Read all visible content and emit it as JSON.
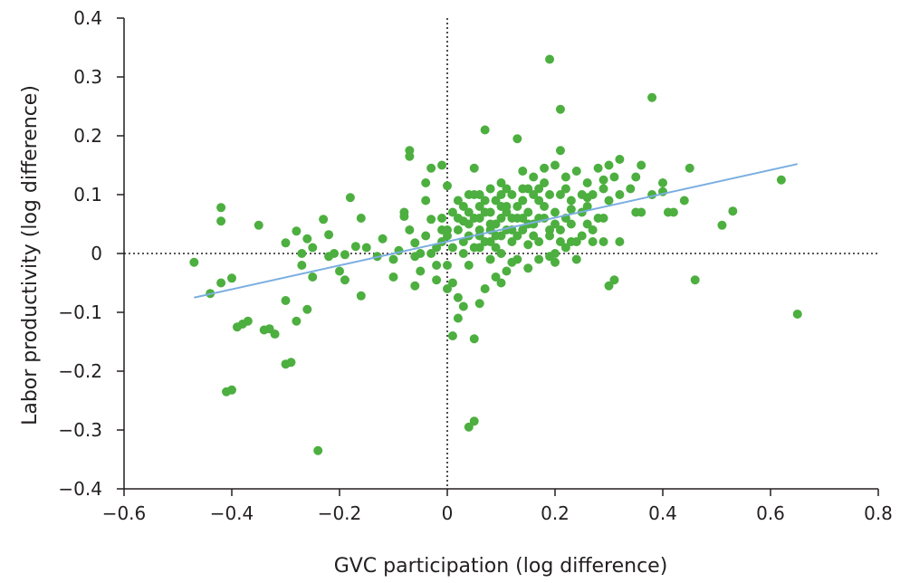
{
  "chart_data": {
    "type": "scatter",
    "title": "",
    "xlabel": "GVC participation (log difference)",
    "ylabel": "Labor productivity (log difference)",
    "xlim": [
      -0.6,
      0.8
    ],
    "ylim": [
      -0.4,
      0.4
    ],
    "x_ticks": [
      -0.6,
      -0.4,
      -0.2,
      0,
      0.2,
      0.4,
      0.6,
      0.8
    ],
    "x_tick_labels": [
      "−0.6",
      "−0.4",
      "−0.2",
      "0",
      "0.2",
      "0.4",
      "0.6",
      "0.8"
    ],
    "y_ticks": [
      -0.4,
      -0.3,
      -0.2,
      -0.1,
      0,
      0.1,
      0.2,
      0.3,
      0.4
    ],
    "y_tick_labels": [
      "−0.4",
      "−0.3",
      "−0.2",
      "−0.1",
      "0",
      "0.1",
      "0.2",
      "0.3",
      "0.4"
    ],
    "grid": false,
    "reference_lines": [
      "x = 0 (dotted)",
      "y = 0 (dotted)"
    ],
    "colors": {
      "points": "#4caf3f",
      "fit_line": "#7aaee0",
      "axis": "#231f20",
      "reference": "#231f20"
    },
    "fit_line": {
      "x": [
        -0.47,
        0.65
      ],
      "y": [
        -0.075,
        0.152
      ]
    },
    "points": [
      [
        -0.47,
        -0.015
      ],
      [
        -0.44,
        -0.068
      ],
      [
        -0.42,
        0.078
      ],
      [
        -0.42,
        0.055
      ],
      [
        -0.42,
        -0.05
      ],
      [
        -0.4,
        -0.042
      ],
      [
        -0.41,
        -0.235
      ],
      [
        -0.4,
        -0.232
      ],
      [
        -0.39,
        -0.125
      ],
      [
        -0.38,
        -0.12
      ],
      [
        -0.37,
        -0.115
      ],
      [
        -0.35,
        0.048
      ],
      [
        -0.34,
        -0.13
      ],
      [
        -0.33,
        -0.128
      ],
      [
        -0.32,
        -0.137
      ],
      [
        -0.3,
        0.018
      ],
      [
        -0.3,
        -0.08
      ],
      [
        -0.3,
        -0.188
      ],
      [
        -0.29,
        -0.185
      ],
      [
        -0.28,
        0.038
      ],
      [
        -0.28,
        -0.115
      ],
      [
        -0.27,
        0.0
      ],
      [
        -0.27,
        -0.02
      ],
      [
        -0.26,
        0.025
      ],
      [
        -0.26,
        -0.095
      ],
      [
        -0.25,
        0.01
      ],
      [
        -0.25,
        -0.04
      ],
      [
        -0.24,
        -0.335
      ],
      [
        -0.23,
        0.058
      ],
      [
        -0.22,
        0.032
      ],
      [
        -0.22,
        -0.005
      ],
      [
        -0.21,
        0.0
      ],
      [
        -0.2,
        -0.03
      ],
      [
        -0.19,
        -0.045
      ],
      [
        -0.19,
        -0.002
      ],
      [
        -0.18,
        0.095
      ],
      [
        -0.17,
        0.012
      ],
      [
        -0.16,
        0.06
      ],
      [
        -0.16,
        -0.072
      ],
      [
        -0.15,
        0.01
      ],
      [
        -0.13,
        -0.005
      ],
      [
        -0.12,
        0.025
      ],
      [
        -0.1,
        -0.01
      ],
      [
        -0.1,
        -0.04
      ],
      [
        -0.09,
        0.005
      ],
      [
        -0.08,
        0.063
      ],
      [
        -0.08,
        0.07
      ],
      [
        -0.07,
        0.175
      ],
      [
        -0.07,
        0.165
      ],
      [
        -0.07,
        0.04
      ],
      [
        -0.06,
        0.018
      ],
      [
        -0.06,
        -0.055
      ],
      [
        -0.05,
        0.0
      ],
      [
        -0.05,
        -0.03
      ],
      [
        -0.04,
        0.12
      ],
      [
        -0.04,
        0.09
      ],
      [
        -0.03,
        0.145
      ],
      [
        -0.03,
        0.058
      ],
      [
        -0.02,
        0.01
      ],
      [
        -0.02,
        -0.045
      ],
      [
        -0.01,
        0.15
      ],
      [
        -0.01,
        0.04
      ],
      [
        0.0,
        0.115
      ],
      [
        0.0,
        0.03
      ],
      [
        0.0,
        -0.02
      ],
      [
        0.01,
        0.07
      ],
      [
        0.01,
        -0.05
      ],
      [
        0.02,
        0.09
      ],
      [
        0.02,
        -0.11
      ],
      [
        0.03,
        0.055
      ],
      [
        0.03,
        0.0
      ],
      [
        0.03,
        -0.09
      ],
      [
        0.04,
        0.1
      ],
      [
        0.04,
        0.03
      ],
      [
        0.04,
        -0.02
      ],
      [
        0.05,
        0.06
      ],
      [
        0.05,
        0.145
      ],
      [
        0.05,
        -0.145
      ],
      [
        0.05,
        -0.285
      ],
      [
        0.06,
        0.04
      ],
      [
        0.06,
        0.08
      ],
      [
        0.06,
        0.01
      ],
      [
        0.07,
        0.21
      ],
      [
        0.07,
        0.07
      ],
      [
        0.07,
        -0.06
      ],
      [
        0.08,
        0.05
      ],
      [
        0.08,
        0.11
      ],
      [
        0.08,
        0.02
      ],
      [
        0.09,
        0.09
      ],
      [
        0.09,
        0.03
      ],
      [
        0.1,
        0.06
      ],
      [
        0.1,
        0.12
      ],
      [
        0.1,
        0.0
      ],
      [
        0.1,
        -0.05
      ],
      [
        0.11,
        0.08
      ],
      [
        0.11,
        0.04
      ],
      [
        0.12,
        0.1
      ],
      [
        0.12,
        0.02
      ],
      [
        0.13,
        0.195
      ],
      [
        0.13,
        0.06
      ],
      [
        0.13,
        -0.01
      ],
      [
        0.14,
        0.11
      ],
      [
        0.14,
        0.04
      ],
      [
        0.15,
        0.07
      ],
      [
        0.15,
        0.015
      ],
      [
        0.16,
        0.13
      ],
      [
        0.16,
        0.05
      ],
      [
        0.17,
        0.09
      ],
      [
        0.17,
        -0.01
      ],
      [
        0.18,
        0.145
      ],
      [
        0.18,
        0.06
      ],
      [
        0.19,
        0.33
      ],
      [
        0.19,
        0.1
      ],
      [
        0.19,
        0.03
      ],
      [
        0.2,
        0.15
      ],
      [
        0.2,
        0.07
      ],
      [
        0.2,
        -0.015
      ],
      [
        0.21,
        0.245
      ],
      [
        0.21,
        0.175
      ],
      [
        0.21,
        0.04
      ],
      [
        0.22,
        0.11
      ],
      [
        0.22,
        0.06
      ],
      [
        0.23,
        0.02
      ],
      [
        0.23,
        0.09
      ],
      [
        0.24,
        0.14
      ],
      [
        0.24,
        -0.01
      ],
      [
        0.25,
        0.07
      ],
      [
        0.25,
        0.03
      ],
      [
        0.26,
        0.12
      ],
      [
        0.26,
        0.08
      ],
      [
        0.27,
        0.1
      ],
      [
        0.27,
        0.04
      ],
      [
        0.28,
        0.145
      ],
      [
        0.28,
        0.06
      ],
      [
        0.29,
        0.11
      ],
      [
        0.29,
        0.02
      ],
      [
        0.3,
        0.15
      ],
      [
        0.3,
        0.09
      ],
      [
        0.3,
        -0.055
      ],
      [
        0.31,
        0.13
      ],
      [
        0.31,
        -0.045
      ],
      [
        0.32,
        0.16
      ],
      [
        0.32,
        0.1
      ],
      [
        0.32,
        0.02
      ],
      [
        0.34,
        0.11
      ],
      [
        0.35,
        0.07
      ],
      [
        0.35,
        0.13
      ],
      [
        0.36,
        0.15
      ],
      [
        0.36,
        0.07
      ],
      [
        0.38,
        0.265
      ],
      [
        0.38,
        0.1
      ],
      [
        0.4,
        0.12
      ],
      [
        0.4,
        0.105
      ],
      [
        0.41,
        0.07
      ],
      [
        0.42,
        0.07
      ],
      [
        0.44,
        0.09
      ],
      [
        0.45,
        0.145
      ],
      [
        0.46,
        -0.045
      ],
      [
        0.51,
        0.048
      ],
      [
        0.53,
        0.072
      ],
      [
        0.62,
        0.125
      ],
      [
        0.65,
        -0.103
      ],
      [
        0.06,
        -0.085
      ],
      [
        0.02,
        -0.075
      ],
      [
        -0.02,
        -0.02
      ],
      [
        0.0,
        -0.06
      ],
      [
        0.01,
        -0.14
      ],
      [
        0.04,
        -0.295
      ],
      [
        0.08,
        -0.01
      ],
      [
        0.11,
        -0.03
      ],
      [
        0.15,
        -0.025
      ],
      [
        0.17,
        0.02
      ],
      [
        0.2,
        0.0
      ],
      [
        0.22,
        0.01
      ],
      [
        0.24,
        0.02
      ],
      [
        0.26,
        0.05
      ],
      [
        0.14,
        0.14
      ],
      [
        0.12,
        0.06
      ],
      [
        0.1,
        0.03
      ],
      [
        0.08,
        0.07
      ],
      [
        0.06,
        0.06
      ],
      [
        0.04,
        0.05
      ],
      [
        0.02,
        0.04
      ],
      [
        -0.01,
        0.02
      ],
      [
        -0.03,
        0.0
      ],
      [
        0.03,
        0.08
      ],
      [
        0.05,
        0.1
      ],
      [
        0.07,
        0.09
      ],
      [
        0.09,
        0.05
      ],
      [
        0.11,
        0.07
      ],
      [
        0.13,
        0.08
      ],
      [
        0.15,
        0.05
      ],
      [
        0.17,
        0.06
      ],
      [
        0.19,
        0.04
      ],
      [
        0.18,
        0.12
      ],
      [
        0.16,
        0.1
      ],
      [
        0.14,
        0.09
      ],
      [
        0.12,
        0.04
      ],
      [
        0.09,
        0.01
      ],
      [
        0.07,
        0.02
      ],
      [
        0.05,
        0.01
      ],
      [
        0.03,
        0.02
      ],
      [
        0.01,
        0.01
      ],
      [
        -0.01,
        0.06
      ],
      [
        0.02,
        0.06
      ],
      [
        0.06,
        0.1
      ],
      [
        0.1,
        0.1
      ],
      [
        0.13,
        0.03
      ],
      [
        0.16,
        0.03
      ],
      [
        0.21,
        0.1
      ],
      [
        0.23,
        0.05
      ],
      [
        0.25,
        0.1
      ],
      [
        0.27,
        0.02
      ],
      [
        0.29,
        0.06
      ],
      [
        0.22,
        0.13
      ],
      [
        0.18,
        0.08
      ],
      [
        0.15,
        0.11
      ],
      [
        0.11,
        0.11
      ],
      [
        0.08,
        0.04
      ],
      [
        0.04,
        0.07
      ],
      [
        0.0,
        0.04
      ],
      [
        -0.04,
        0.03
      ],
      [
        -0.06,
        -0.005
      ],
      [
        0.09,
        -0.04
      ],
      [
        0.12,
        -0.015
      ],
      [
        0.19,
        -0.005
      ],
      [
        0.21,
        0.02
      ],
      [
        0.06,
        0.03
      ],
      [
        0.1,
        0.08
      ],
      [
        0.14,
        0.06
      ],
      [
        0.17,
        0.11
      ],
      [
        0.2,
        0.05
      ],
      [
        0.23,
        0.075
      ],
      [
        0.26,
        0.095
      ],
      [
        0.29,
        0.125
      ]
    ]
  }
}
